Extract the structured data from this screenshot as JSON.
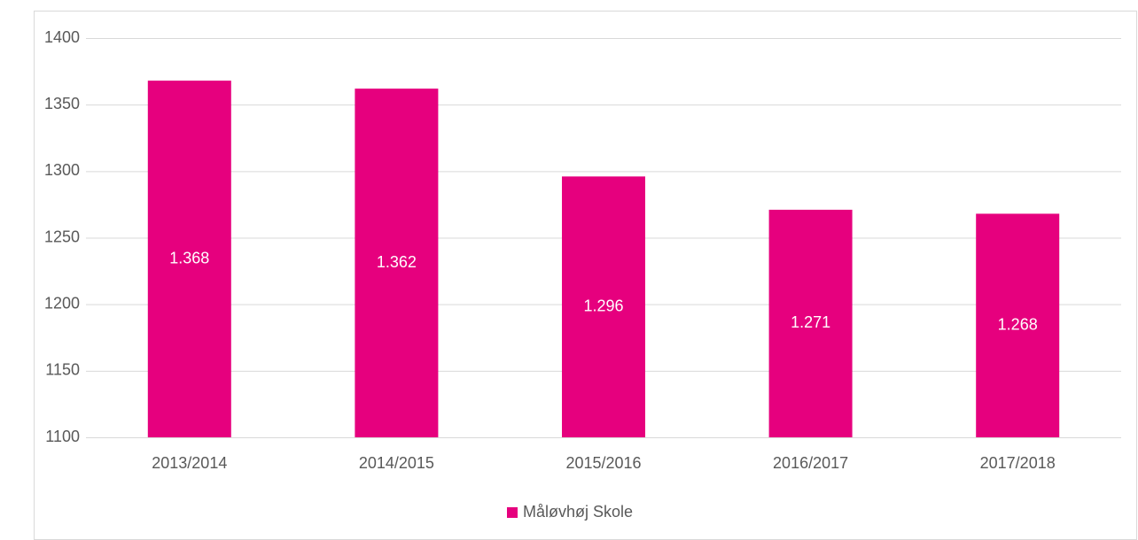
{
  "chart_data": {
    "type": "bar",
    "categories": [
      "2013/2014",
      "2014/2015",
      "2015/2016",
      "2016/2017",
      "2017/2018"
    ],
    "series": [
      {
        "name": "Måløvhøj Skole",
        "color": "#e6007e",
        "values": [
          1368,
          1362,
          1296,
          1271,
          1268
        ],
        "value_labels": [
          "1.368",
          "1.362",
          "1.296",
          "1.271",
          "1.268"
        ]
      }
    ],
    "ylim": [
      1100,
      1400
    ],
    "yticks": [
      1100,
      1150,
      1200,
      1250,
      1300,
      1350,
      1400
    ],
    "grid": true,
    "legend": "bottom"
  }
}
